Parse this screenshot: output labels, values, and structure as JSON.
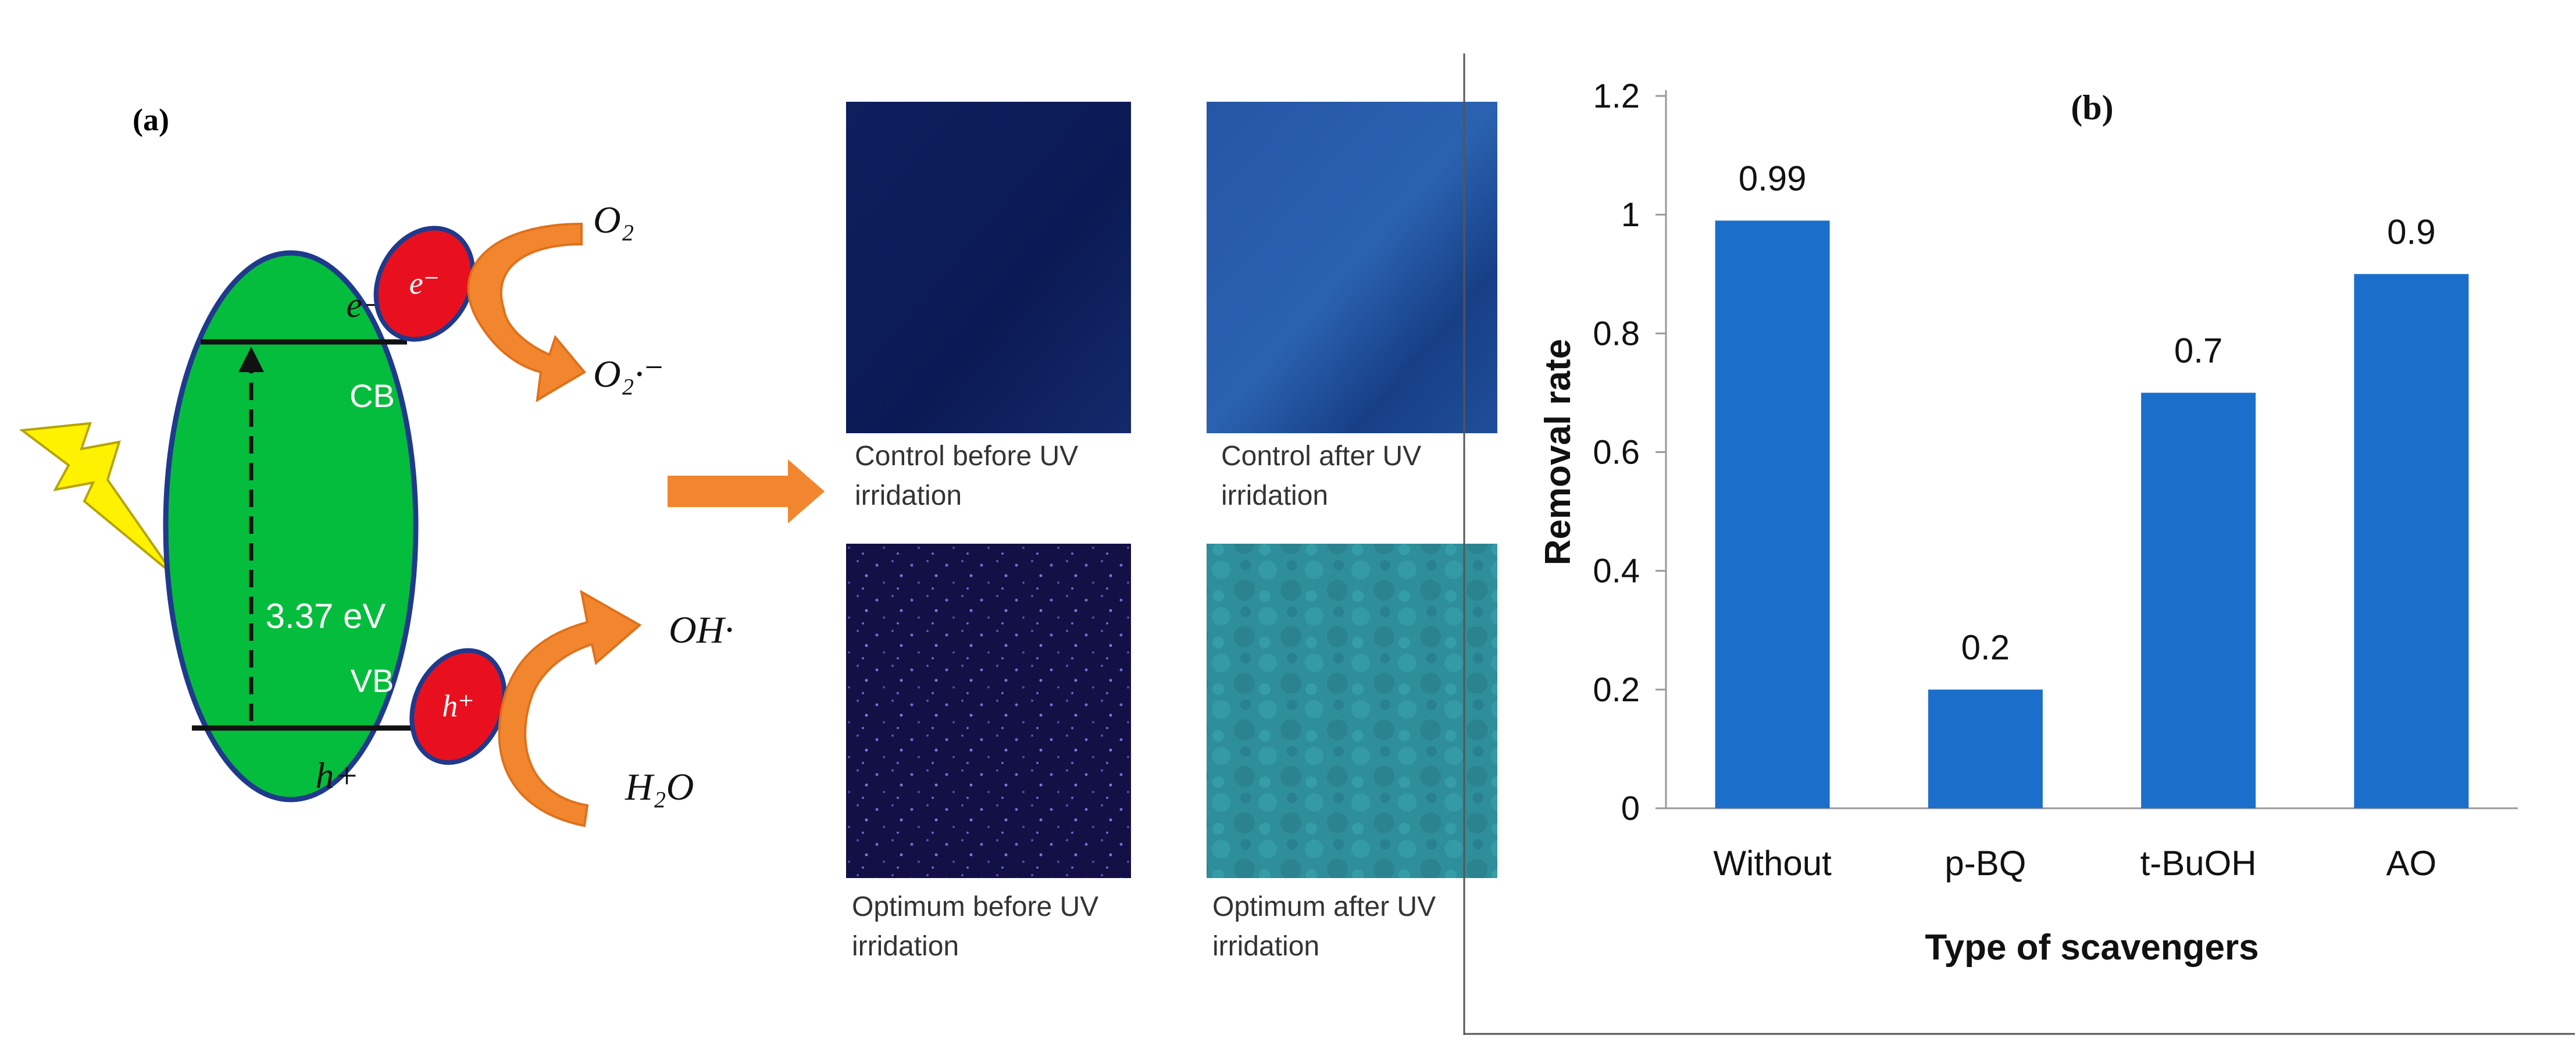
{
  "colors": {
    "particle_green": "#05BD3C",
    "electron_hole_red": "#E8101E",
    "ellipse_border": "#1F3A8C",
    "arrow_orange": "#F2862E",
    "lightning_yellow": "#FFF200",
    "bar_blue": "#1B6FCB",
    "panel_border": "#555555"
  },
  "panel_a": {
    "label": "(a)",
    "electron_label": "e−",
    "hole_label": "h+",
    "cb_label": "CB",
    "vb_label": "VB",
    "band_gap_label": "3.37 eV",
    "electron_badge_label": "e⁻",
    "hole_badge_label": "h⁺",
    "o2_label": "O₂",
    "superoxide_label": "O₂·⁻",
    "hydroxyl_label": "OH·",
    "water_label": "H₂O",
    "lightning_icon": "lightning-icon",
    "arrow_icon": "right-arrow-icon"
  },
  "images": [
    {
      "caption_line1": "Control before UV",
      "caption_line2": "irridation",
      "tone": "dark-navy"
    },
    {
      "caption_line1": "Control after UV",
      "caption_line2": "irridation",
      "tone": "medium-blue"
    },
    {
      "caption_line1": "Optimum before UV",
      "caption_line2": "irridation",
      "tone": "dark-speckled"
    },
    {
      "caption_line1": "Optimum after UV",
      "caption_line2": "irridation",
      "tone": "teal"
    }
  ],
  "chart_data": {
    "type": "bar",
    "panel_label": "(b)",
    "categories": [
      "Without",
      "p-BQ",
      "t-BuOH",
      "AO"
    ],
    "values": [
      0.99,
      0.2,
      0.7,
      0.9
    ],
    "data_labels": [
      "0.99",
      "0.2",
      "0.7",
      "0.9"
    ],
    "xlabel": "Type of scavengers",
    "ylabel": "Removal rate",
    "ylim": [
      0,
      1.2
    ],
    "yticks": [
      0,
      0.2,
      0.4,
      0.6,
      0.8,
      1,
      1.2
    ],
    "ytick_labels": [
      "0",
      "0.2",
      "0.4",
      "0.6",
      "0.8",
      "1",
      "1.2"
    ],
    "grid": false,
    "legend": "none"
  }
}
